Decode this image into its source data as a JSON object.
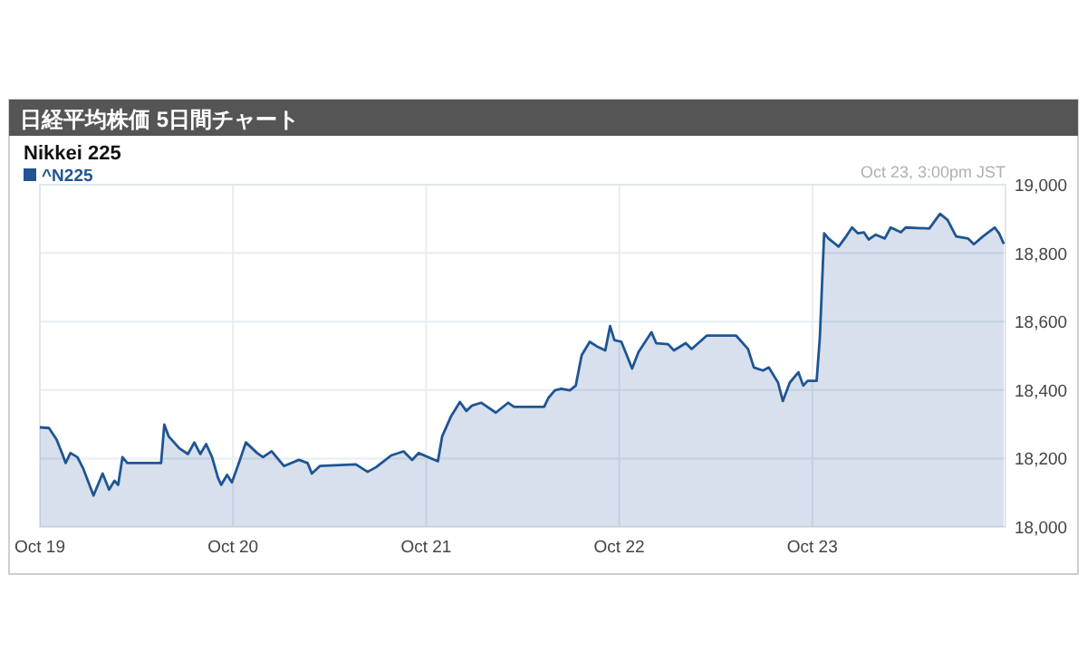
{
  "chart_data": {
    "type": "area",
    "title": "日経平均株価 5日間チャート",
    "subtitle": "Nikkei 225",
    "annotations": [
      "Oct 23, 3:00pm JST"
    ],
    "series": [
      {
        "name": "^N225",
        "color": "#1f5593",
        "x": [
          "--10-19T00:00",
          "--10-19T01:08",
          "--10-19T02:04",
          "--10-19T02:48",
          "--10-19T03:12",
          "--10-19T03:48",
          "--10-19T04:40",
          "--10-19T05:24",
          "--10-19T06:40",
          "--10-19T07:48",
          "--10-19T08:36",
          "--10-19T09:16",
          "--10-19T09:44",
          "--10-19T10:16",
          "--10-19T10:52",
          "--10-19T15:04",
          "--10-19T15:28",
          "--10-19T16:00",
          "--10-19T17:20",
          "--10-19T18:24",
          "--10-19T19:12",
          "--10-19T19:56",
          "--10-19T20:40",
          "--10-19T21:24",
          "--10-19T22:08",
          "--10-19T22:32",
          "--10-19T23:16",
          "--10-19T23:52",
          "--10-20T00:44",
          "--10-20T01:36",
          "--10-20T03:00",
          "--10-20T03:44",
          "--10-20T04:48",
          "--10-20T06:20",
          "--10-20T08:12",
          "--10-20T09:16",
          "--10-20T09:48",
          "--10-20T10:48",
          "--10-20T15:16",
          "--10-20T16:44",
          "--10-20T17:48",
          "--10-20T19:40",
          "--10-20T21:12",
          "--10-20T22:16",
          "--10-20T23:04",
          "--10-21T01:28",
          "--10-21T02:00",
          "--10-21T03:08",
          "--10-21T04:12",
          "--10-21T05:00",
          "--10-21T05:44",
          "--10-21T06:52",
          "--10-21T08:40",
          "--10-21T10:12",
          "--10-21T10:56",
          "--10-21T14:40",
          "--10-21T15:12",
          "--10-21T16:00",
          "--10-21T16:48",
          "--10-21T17:52",
          "--10-21T18:36",
          "--10-21T19:20",
          "--10-21T20:20",
          "--10-21T21:12",
          "--10-21T22:16",
          "--10-21T22:52",
          "--10-21T23:24",
          "--10-22T00:16",
          "--10-22T01:36",
          "--10-22T02:24",
          "--10-22T04:00",
          "--10-22T04:36",
          "--10-22T06:04",
          "--10-22T06:48",
          "--10-22T08:16",
          "--10-22T09:00",
          "--10-22T10:52",
          "--10-22T14:32",
          "--10-22T16:00",
          "--10-22T16:44",
          "--10-22T17:52",
          "--10-22T18:36",
          "--10-22T19:44",
          "--10-22T20:20",
          "--10-22T21:12",
          "--10-22T22:16",
          "--10-22T22:52",
          "--10-22T23:24",
          "--10-23T00:32",
          "--10-23T00:56",
          "--10-23T01:28",
          "--10-23T02:00",
          "--10-23T03:16",
          "--10-23T04:12",
          "--10-23T04:56",
          "--10-23T05:40",
          "--10-23T06:24",
          "--10-23T07:00",
          "--10-23T07:52",
          "--10-23T09:00",
          "--10-23T09:44",
          "--10-23T11:00",
          "--10-23T11:36",
          "--10-23T14:32",
          "--10-23T15:52",
          "--10-23T16:48",
          "--10-23T17:52",
          "--10-23T19:20",
          "--10-23T20:04",
          "--10-23T21:12",
          "--10-23T22:40",
          "--10-23T23:12",
          "--10-23T23:48"
        ],
        "values": [
          18291,
          18289,
          18256,
          18213,
          18187,
          18216,
          18204,
          18170,
          18092,
          18156,
          18109,
          18135,
          18123,
          18204,
          18187,
          18187,
          18299,
          18265,
          18230,
          18213,
          18247,
          18213,
          18242,
          18204,
          18144,
          18123,
          18152,
          18130,
          18187,
          18247,
          18216,
          18204,
          18221,
          18178,
          18196,
          18187,
          18156,
          18178,
          18183,
          18161,
          18175,
          18209,
          18221,
          18196,
          18216,
          18192,
          18265,
          18325,
          18365,
          18339,
          18355,
          18363,
          18334,
          18363,
          18351,
          18351,
          18377,
          18399,
          18404,
          18399,
          18413,
          18502,
          18541,
          18528,
          18516,
          18587,
          18546,
          18541,
          18463,
          18511,
          18569,
          18537,
          18534,
          18516,
          18537,
          18520,
          18559,
          18559,
          18520,
          18466,
          18457,
          18466,
          18422,
          18368,
          18422,
          18452,
          18413,
          18427,
          18427,
          18555,
          18858,
          18843,
          18819,
          18849,
          18875,
          18858,
          18861,
          18840,
          18854,
          18843,
          18875,
          18861,
          18875,
          18872,
          18915,
          18897,
          18849,
          18843,
          18826,
          18849,
          18875,
          18858,
          18827
        ]
      }
    ],
    "xlim": [
      "--10-19",
      "--10-24"
    ],
    "xticks": [
      {
        "value": "--10-19",
        "label": "Oct 19"
      },
      {
        "value": "--10-20",
        "label": "Oct 20"
      },
      {
        "value": "--10-21",
        "label": "Oct 21"
      },
      {
        "value": "--10-22",
        "label": "Oct 22"
      },
      {
        "value": "--10-23",
        "label": "Oct 23"
      }
    ],
    "ylim": [
      18000,
      19000
    ],
    "yticks": [
      {
        "value": 18000,
        "label": "18,000"
      },
      {
        "value": 18200,
        "label": "18,200"
      },
      {
        "value": 18400,
        "label": "18,400"
      },
      {
        "value": 18600,
        "label": "18,600"
      },
      {
        "value": 18800,
        "label": "18,800"
      },
      {
        "value": 19000,
        "label": "19,000"
      }
    ],
    "grid": true,
    "legend": "top left"
  }
}
